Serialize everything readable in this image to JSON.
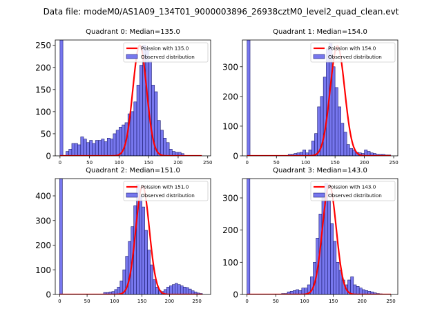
{
  "figure_title": "Data file: modeM0/AS1A09_134T01_9000003896_26938cztM0_level2_quad_clean.evt",
  "legend_labels": {
    "fit": "Poission with {m}",
    "hist": "Observed distribution"
  },
  "colors": {
    "fit": "#ff0000",
    "bar_fill": "#7777ee",
    "bar_edge": "#1a1a6e",
    "axis": "#000000"
  },
  "chart_data": [
    {
      "type": "bar",
      "title": "Quadrant 0: Median=135.0",
      "median": 135.0,
      "fit_label": "Poission with 135.0",
      "xlim": [
        -8,
        255
      ],
      "ylim": [
        0,
        262
      ],
      "xticks": [
        0,
        50,
        100,
        150,
        200,
        250
      ],
      "yticks": [
        0,
        50,
        100,
        150,
        200,
        250
      ],
      "bin_start": 0,
      "bin_width": 5,
      "values": [
        262,
        0,
        10,
        15,
        28,
        28,
        25,
        43,
        38,
        30,
        35,
        28,
        35,
        35,
        38,
        32,
        40,
        38,
        50,
        58,
        65,
        70,
        75,
        95,
        100,
        122,
        160,
        205,
        250,
        240,
        215,
        160,
        145,
        80,
        58,
        40,
        30,
        15,
        10,
        8,
        8,
        5
      ],
      "fit_peak": 250,
      "fit_sigma": 11.6,
      "fit_x": [
        0,
        240
      ]
    },
    {
      "type": "bar",
      "title": "Quadrant 1: Median=154.0",
      "median": 154.0,
      "fit_label": "Poission with 154.0",
      "xlim": [
        -8,
        257
      ],
      "ylim": [
        0,
        390
      ],
      "xticks": [
        0,
        50,
        100,
        150,
        200,
        250
      ],
      "yticks": [
        0,
        100,
        200,
        300
      ],
      "bin_start": 0,
      "bin_width": 5,
      "values": [
        390,
        0,
        0,
        0,
        0,
        0,
        0,
        0,
        0,
        0,
        0,
        0,
        0,
        0,
        5,
        5,
        8,
        10,
        12,
        20,
        10,
        20,
        50,
        75,
        165,
        200,
        265,
        360,
        380,
        300,
        230,
        165,
        110,
        80,
        38,
        25,
        20,
        12,
        10,
        8,
        20,
        15,
        10,
        8,
        5,
        5,
        5,
        3,
        3
      ],
      "fit_peak": 370,
      "fit_sigma": 12.4,
      "fit_x": [
        0,
        245
      ]
    },
    {
      "type": "bar",
      "title": "Quadrant 2: Median=151.0",
      "median": 151.0,
      "fit_label": "Poission with 151.0",
      "xlim": [
        -8,
        275
      ],
      "ylim": [
        0,
        470
      ],
      "xticks": [
        0,
        50,
        100,
        150,
        200,
        250
      ],
      "yticks": [
        0,
        100,
        200,
        300,
        400
      ],
      "bin_start": 0,
      "bin_width": 5,
      "values": [
        470,
        0,
        0,
        0,
        0,
        0,
        0,
        0,
        0,
        0,
        0,
        0,
        0,
        0,
        0,
        0,
        8,
        8,
        10,
        12,
        20,
        30,
        55,
        100,
        155,
        215,
        275,
        360,
        445,
        400,
        355,
        260,
        180,
        120,
        60,
        30,
        15,
        12,
        20,
        30,
        35,
        40,
        45,
        40,
        35,
        30,
        28,
        22,
        15,
        10,
        6,
        4
      ],
      "fit_peak": 440,
      "fit_sigma": 12.3,
      "fit_x": [
        0,
        260
      ]
    },
    {
      "type": "bar",
      "title": "Quadrant 3: Median=143.0",
      "median": 143.0,
      "fit_label": "Poission with 143.0",
      "xlim": [
        -8,
        262
      ],
      "ylim": [
        0,
        360
      ],
      "xticks": [
        0,
        50,
        100,
        150,
        200,
        250
      ],
      "yticks": [
        0,
        100,
        200,
        300
      ],
      "bin_start": 0,
      "bin_width": 5,
      "values": [
        360,
        0,
        0,
        0,
        0,
        0,
        0,
        0,
        0,
        0,
        0,
        0,
        3,
        3,
        8,
        10,
        12,
        15,
        12,
        20,
        20,
        30,
        55,
        100,
        175,
        250,
        300,
        345,
        290,
        220,
        165,
        100,
        75,
        45,
        30,
        45,
        55,
        30,
        25,
        20,
        15,
        12,
        10,
        8,
        5,
        3,
        2,
        0
      ],
      "fit_peak": 340,
      "fit_sigma": 12.0,
      "fit_x": [
        0,
        250
      ]
    }
  ]
}
